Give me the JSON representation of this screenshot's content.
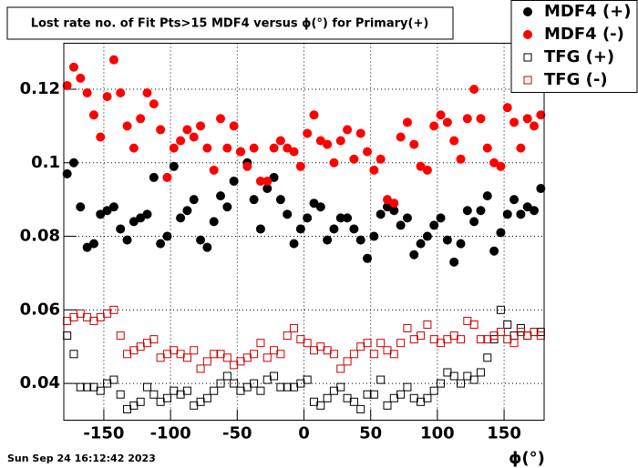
{
  "chart_data": {
    "type": "scatter",
    "title": "Lost rate no. of Fit Pts>15 MDF4 versus ϕ(°) for Primary(+)",
    "x_label": "ϕ(°)",
    "timestamp": "Sun Sep 24 16:12:42 2023",
    "x": [
      -177.5,
      -172.5,
      -167.5,
      -162.5,
      -157.5,
      -152.5,
      -147.5,
      -142.5,
      -137.5,
      -132.5,
      -127.5,
      -122.5,
      -117.5,
      -112.5,
      -107.5,
      -102.5,
      -97.5,
      -92.5,
      -87.5,
      -82.5,
      -77.5,
      -72.5,
      -67.5,
      -62.5,
      -57.5,
      -52.5,
      -47.5,
      -42.5,
      -37.5,
      -32.5,
      -27.5,
      -22.5,
      -17.5,
      -12.5,
      -7.5,
      -2.5,
      2.5,
      7.5,
      12.5,
      17.5,
      22.5,
      27.5,
      32.5,
      37.5,
      42.5,
      47.5,
      52.5,
      57.5,
      62.5,
      67.5,
      72.5,
      77.5,
      82.5,
      87.5,
      92.5,
      97.5,
      102.5,
      107.5,
      112.5,
      117.5,
      122.5,
      127.5,
      132.5,
      137.5,
      142.5,
      147.5,
      152.5,
      157.5,
      162.5,
      167.5,
      172.5,
      177.5
    ],
    "series": [
      {
        "name": "MDF4 (+)",
        "color": "#000000",
        "marker": "circle",
        "filled": true,
        "values": [
          0.097,
          0.1,
          0.088,
          0.077,
          0.078,
          0.086,
          0.087,
          0.088,
          0.082,
          0.079,
          0.084,
          0.085,
          0.086,
          0.096,
          0.078,
          0.08,
          0.099,
          0.085,
          0.087,
          0.09,
          0.079,
          0.077,
          0.084,
          0.091,
          0.088,
          0.095,
          0.103,
          0.1,
          0.09,
          0.082,
          0.093,
          0.096,
          0.09,
          0.086,
          0.078,
          0.082,
          0.085,
          0.089,
          0.088,
          0.079,
          0.082,
          0.085,
          0.085,
          0.082,
          0.079,
          0.074,
          0.08,
          0.086,
          0.088,
          0.087,
          0.083,
          0.085,
          0.075,
          0.078,
          0.08,
          0.083,
          0.085,
          0.079,
          0.073,
          0.078,
          0.087,
          0.084,
          0.087,
          0.091,
          0.076,
          0.081,
          0.086,
          0.09,
          0.086,
          0.088,
          0.087,
          0.093
        ]
      },
      {
        "name": "MDF4 (-)",
        "color": "#ff0000",
        "marker": "circle",
        "filled": true,
        "values": [
          0.121,
          0.126,
          0.123,
          0.119,
          0.113,
          0.107,
          0.118,
          0.128,
          0.119,
          0.11,
          0.104,
          0.112,
          0.119,
          0.116,
          0.109,
          0.096,
          0.104,
          0.106,
          0.109,
          0.107,
          0.11,
          0.104,
          0.098,
          0.112,
          0.104,
          0.11,
          0.103,
          0.099,
          0.104,
          0.095,
          0.095,
          0.104,
          0.106,
          0.104,
          0.103,
          0.099,
          0.108,
          0.113,
          0.106,
          0.105,
          0.1,
          0.106,
          0.109,
          0.101,
          0.108,
          0.103,
          0.098,
          0.101,
          0.09,
          0.089,
          0.107,
          0.111,
          0.105,
          0.099,
          0.098,
          0.11,
          0.113,
          0.111,
          0.106,
          0.101,
          0.112,
          0.12,
          0.112,
          0.104,
          0.1,
          0.099,
          0.115,
          0.111,
          0.104,
          0.112,
          0.11,
          0.113
        ]
      },
      {
        "name": "TFG (+)",
        "color": "#000000",
        "marker": "square",
        "filled": false,
        "values": [
          0.053,
          0.048,
          0.039,
          0.039,
          0.039,
          0.038,
          0.04,
          0.041,
          0.037,
          0.033,
          0.034,
          0.035,
          0.039,
          0.037,
          0.035,
          0.036,
          0.038,
          0.037,
          0.038,
          0.034,
          0.035,
          0.036,
          0.038,
          0.04,
          0.042,
          0.04,
          0.038,
          0.039,
          0.04,
          0.038,
          0.041,
          0.042,
          0.039,
          0.039,
          0.039,
          0.04,
          0.041,
          0.035,
          0.034,
          0.036,
          0.038,
          0.039,
          0.036,
          0.035,
          0.033,
          0.037,
          0.037,
          0.041,
          0.034,
          0.036,
          0.037,
          0.039,
          0.036,
          0.035,
          0.036,
          0.038,
          0.04,
          0.043,
          0.042,
          0.04,
          0.042,
          0.041,
          0.043,
          0.047,
          0.052,
          0.06,
          0.056,
          0.053,
          0.055,
          0.053,
          0.054,
          0.054
        ]
      },
      {
        "name": "TFG (-)",
        "color": "#cc0000",
        "marker": "square",
        "filled": false,
        "values": [
          0.057,
          0.058,
          0.059,
          0.058,
          0.057,
          0.058,
          0.059,
          0.06,
          0.053,
          0.048,
          0.049,
          0.05,
          0.051,
          0.052,
          0.047,
          0.048,
          0.049,
          0.048,
          0.047,
          0.049,
          0.044,
          0.046,
          0.048,
          0.048,
          0.047,
          0.045,
          0.046,
          0.047,
          0.048,
          0.051,
          0.047,
          0.049,
          0.048,
          0.053,
          0.055,
          0.052,
          0.051,
          0.049,
          0.05,
          0.049,
          0.048,
          0.044,
          0.046,
          0.048,
          0.05,
          0.051,
          0.048,
          0.051,
          0.049,
          0.048,
          0.051,
          0.055,
          0.052,
          0.053,
          0.056,
          0.052,
          0.051,
          0.052,
          0.053,
          0.052,
          0.057,
          0.056,
          0.052,
          0.052,
          0.053,
          0.054,
          0.052,
          0.051,
          0.054,
          0.053,
          0.054,
          0.053
        ]
      }
    ],
    "xlim": [
      -180,
      180
    ],
    "ylim": [
      0.03,
      0.1325
    ],
    "xticks": [
      -150,
      -100,
      -50,
      0,
      50,
      100,
      150
    ],
    "yticks": [
      0.04,
      0.06,
      0.08,
      0.1,
      0.12
    ],
    "grid": true,
    "legend": "top-right"
  }
}
